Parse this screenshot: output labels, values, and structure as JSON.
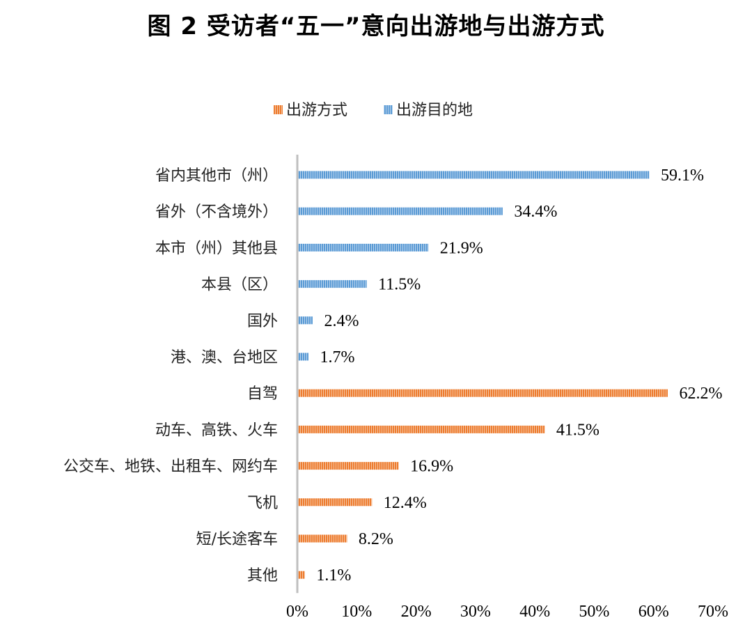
{
  "chart_data": {
    "type": "bar",
    "orientation": "horizontal",
    "title": "图 2  受访者“五一”意向出游地与出游方式",
    "xlim": [
      0,
      70
    ],
    "xticks": [
      "0%",
      "10%",
      "20%",
      "30%",
      "40%",
      "50%",
      "60%",
      "70%"
    ],
    "legend_position": "top",
    "grid": false,
    "series": [
      {
        "name": "出游目的地",
        "color": "#5b9bd5",
        "categories": [
          "省内其他市（州）",
          "省外（不含境外）",
          "本市（州）其他县",
          "本县（区）",
          "国外",
          "港、澳、台地区"
        ],
        "values": [
          59.1,
          34.4,
          21.9,
          11.5,
          2.4,
          1.7
        ],
        "labels": [
          "59.1%",
          "34.4%",
          "21.9%",
          "11.5%",
          "2.4%",
          "1.7%"
        ]
      },
      {
        "name": "出游方式",
        "color": "#ed7d31",
        "categories": [
          "自驾",
          "动车、高铁、火车",
          "公交车、地铁、出租车、网约车",
          "飞机",
          "短/长途客车",
          "其他"
        ],
        "values": [
          62.2,
          41.5,
          16.9,
          12.4,
          8.2,
          1.1
        ],
        "labels": [
          "62.2%",
          "41.5%",
          "16.9%",
          "12.4%",
          "8.2%",
          "1.1%"
        ]
      }
    ],
    "legend_order": [
      "出游方式",
      "出游目的地"
    ]
  }
}
